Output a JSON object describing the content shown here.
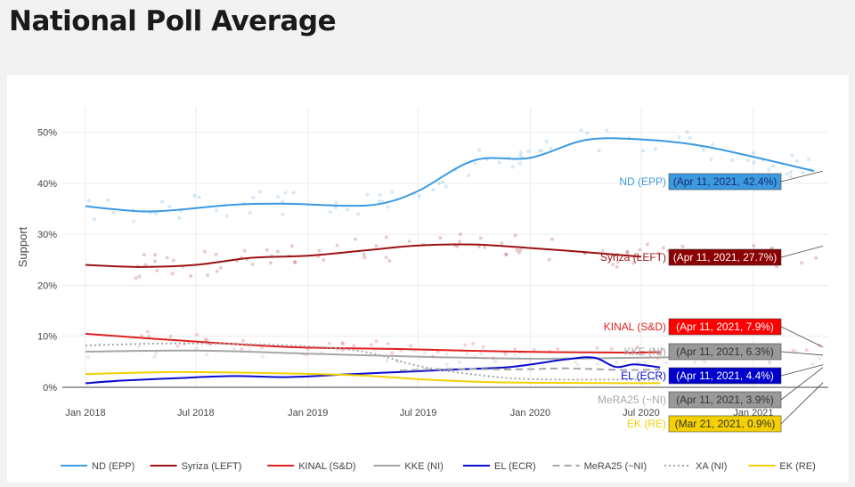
{
  "page": {
    "title": "National Poll Average"
  },
  "chart_data": {
    "type": "line",
    "ylabel": "Support",
    "xlabel": "",
    "ylim": [
      0,
      55
    ],
    "yticks": [
      0,
      10,
      20,
      30,
      40,
      50
    ],
    "ytick_labels": [
      "0%",
      "10%",
      "20%",
      "30%",
      "40%",
      "50%"
    ],
    "xlim": [
      "2017-11-24",
      "2021-05-04"
    ],
    "xticks": [
      "2018-01-01",
      "2018-07-01",
      "2019-01-01",
      "2019-07-01",
      "2020-01-01",
      "2020-07-01",
      "2021-01-01"
    ],
    "xtick_labels": [
      "Jan 2018",
      "Jul 2018",
      "Jan 2019",
      "Jul 2019",
      "Jan 2020",
      "Jul 2020",
      "Jan 2021"
    ],
    "grid": true,
    "legend_position": "bottom",
    "series": [
      {
        "name": "ND (EPP)",
        "color": "#3c9ae0",
        "dash": "solid",
        "end_label": "ND (EPP)",
        "end_value": "(Apr 11, 2021, 42.4%)",
        "end_text_color": "#3c9ae0",
        "box_text_color": "#1a2a6c",
        "x": [
          "2018-01-01",
          "2018-04-01",
          "2018-06-01",
          "2018-09-01",
          "2018-12-01",
          "2019-03-01",
          "2019-05-01",
          "2019-07-01",
          "2019-10-01",
          "2020-01-01",
          "2020-04-01",
          "2020-07-01",
          "2020-10-01",
          "2021-01-01",
          "2021-04-11"
        ],
        "y": [
          35.5,
          34.5,
          34.8,
          35.8,
          36,
          35.6,
          36,
          38.5,
          44.5,
          45,
          48.5,
          48.6,
          47.5,
          45.2,
          42.4
        ]
      },
      {
        "name": "Syriza (LEFT)",
        "color": "#9a1214",
        "dash": "solid",
        "end_label": "Syriza (LEFT)",
        "end_value": "(Apr 11, 2021, 27.7%)",
        "end_text_color": "#9a1214",
        "box_text_color": "#ffffff",
        "x": [
          "2018-01-01",
          "2018-04-01",
          "2018-07-01",
          "2018-10-01",
          "2019-01-01",
          "2019-04-01",
          "2019-07-01",
          "2019-10-01",
          "2020-01-01",
          "2020-04-01",
          "2020-07-01"
        ],
        "y": [
          24,
          23.6,
          24,
          25.4,
          25.8,
          26.8,
          27.8,
          28,
          27.3,
          26.5,
          25.6
        ]
      },
      {
        "name": "KINAL (S&D)",
        "color": "#e02020",
        "dash": "solid",
        "end_label": "KINAL (S&D)",
        "end_value": "(Apr 11, 2021, 7.9%)",
        "end_text_color": "#e02020",
        "box_text_color": "#ffffff",
        "x": [
          "2018-01-01",
          "2018-06-01",
          "2018-12-01",
          "2019-06-01",
          "2019-12-01",
          "2020-06-01",
          "2020-08-01"
        ],
        "y": [
          10.5,
          9.2,
          7.9,
          7.5,
          7.0,
          6.8,
          6.9
        ]
      },
      {
        "name": "KKE (NI)",
        "color": "#a6a6a6",
        "dash": "solid",
        "end_label": "KKE (NI)",
        "end_value": "(Apr 11, 2021, 6.3%)",
        "end_text_color": "#a6a6a6",
        "box_text_color": "#333333",
        "x": [
          "2018-01-01",
          "2018-07-01",
          "2019-01-01",
          "2019-07-01",
          "2020-01-01",
          "2020-07-01",
          "2020-09-01"
        ],
        "y": [
          7.0,
          7.2,
          6.6,
          6.0,
          5.6,
          5.8,
          5.9
        ]
      },
      {
        "name": "EL (ECR)",
        "color": "#0a0ad0",
        "dash": "solid",
        "end_label": "EL (ECR)",
        "end_value": "(Apr 11, 2021, 4.4%)",
        "end_text_color": "#0a0ad0",
        "box_text_color": "#ffffff",
        "x": [
          "2018-01-01",
          "2018-03-01",
          "2018-06-01",
          "2018-09-01",
          "2018-12-01",
          "2019-03-01",
          "2019-06-01",
          "2019-09-01",
          "2019-12-01",
          "2020-03-01",
          "2020-04-15",
          "2020-05-20",
          "2020-06-20",
          "2020-08-01"
        ],
        "y": [
          0.8,
          1.3,
          1.8,
          2.2,
          2.0,
          2.5,
          3.0,
          3.5,
          4.0,
          5.5,
          5.8,
          4.0,
          4.5,
          3.9
        ]
      },
      {
        "name": "MeRA25 (~NI)",
        "color": "#a6a6a6",
        "dash": "dashed",
        "end_label": "MeRA25 (~NI)",
        "end_value": "(Apr 11, 2021, 3.9%)",
        "end_text_color": "#a6a6a6",
        "box_text_color": "#333333",
        "x": [
          "2019-06-01",
          "2019-09-01",
          "2019-12-01",
          "2020-03-01",
          "2020-06-01",
          "2020-08-01"
        ],
        "y": [
          3.3,
          3.6,
          3.5,
          3.7,
          3.4,
          3.5
        ]
      },
      {
        "name": "XA (NI)",
        "color": "#a6a6a6",
        "dash": "dotted",
        "end_label": "",
        "end_value": "",
        "end_text_color": "#a6a6a6",
        "box_text_color": "#333333",
        "x": [
          "2018-01-01",
          "2018-06-01",
          "2018-12-01",
          "2019-04-01",
          "2019-07-01",
          "2019-10-01",
          "2020-01-01",
          "2020-06-01",
          "2020-08-01"
        ],
        "y": [
          8.2,
          8.6,
          8.2,
          7.0,
          4.2,
          2.5,
          1.6,
          1.5,
          1.5
        ]
      },
      {
        "name": "EK (RE)",
        "color": "#f5d000",
        "dash": "solid",
        "end_label": "EK (RE)",
        "end_value": "(Mar 21, 2021, 0.9%)",
        "end_text_color": "#f5d000",
        "box_text_color": "#333333",
        "x": [
          "2018-01-01",
          "2018-06-01",
          "2018-12-01",
          "2019-04-01",
          "2019-07-01",
          "2019-10-01",
          "2020-01-01",
          "2020-06-01",
          "2020-08-01"
        ],
        "y": [
          2.6,
          3.0,
          2.7,
          2.3,
          1.6,
          1.1,
          0.9,
          0.8,
          0.8
        ]
      }
    ],
    "colors": {
      "gridline": "#ebebeb",
      "zeroline": "#444444",
      "nd_box": "#3c9ae0",
      "syriza_box": "#8b0000",
      "kinal_box": "#ff0000",
      "kke_box": "#999999",
      "el_box": "#0000cc",
      "mera_box": "#999999",
      "ek_box": "#f5d000"
    }
  }
}
